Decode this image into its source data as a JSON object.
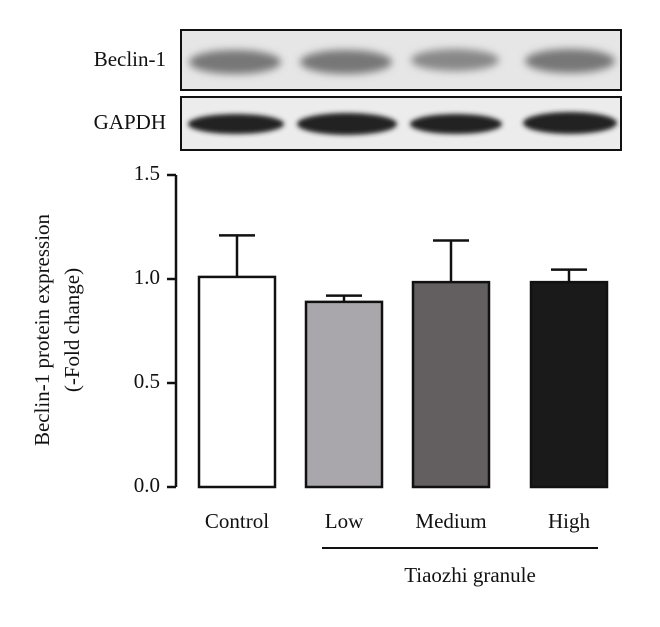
{
  "chart_data": {
    "type": "bar",
    "y_label_lines": [
      "Beclin-1 protein expression",
      "(-Fold change)"
    ],
    "blot_labels": [
      "Beclin-1",
      "GAPDH"
    ],
    "group_label": "Tiaozhi granule",
    "categories": [
      "Control",
      "Low",
      "Medium",
      "High"
    ],
    "values": [
      1.01,
      0.89,
      0.985,
      0.985
    ],
    "errors": [
      0.2,
      0.03,
      0.2,
      0.06
    ],
    "colors": [
      "#ffffff",
      "#a9a7ac",
      "#635e60",
      "#1b1a1a"
    ],
    "ylim": [
      0,
      1.5
    ],
    "yticks": [
      {
        "value": 0,
        "label": "0.0"
      },
      0.5,
      {
        "value": 1,
        "label": "1.0"
      },
      1.5
    ]
  }
}
